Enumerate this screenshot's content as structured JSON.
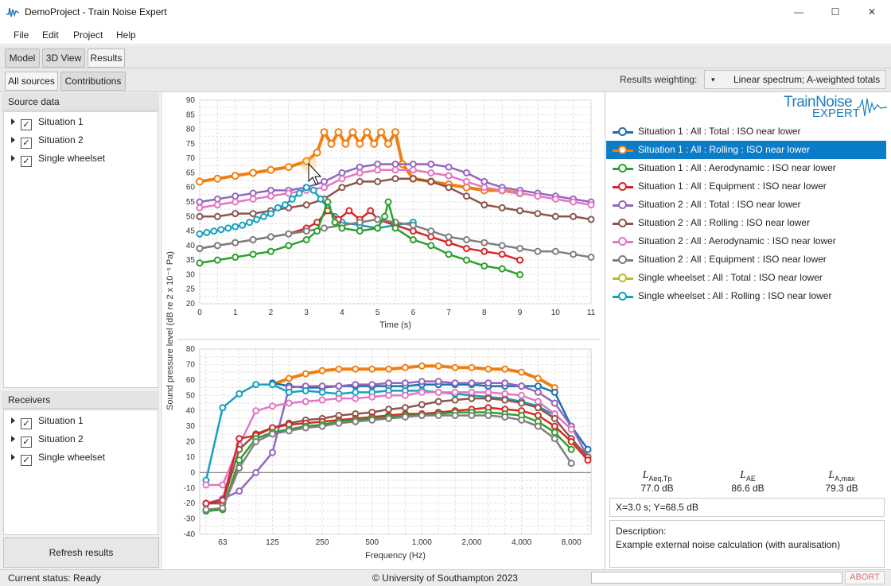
{
  "window": {
    "title": "DemoProject - Train Noise Expert",
    "minimize": "—",
    "maximize": "☐",
    "close": "✕"
  },
  "menu": [
    "File",
    "Edit",
    "Project",
    "Help"
  ],
  "view_tabs": [
    "Model",
    "3D View",
    "Results"
  ],
  "result_tabs": [
    "All sources",
    "Contributions"
  ],
  "weighting": {
    "label": "Results weighting:",
    "value": "Linear spectrum; A-weighted totals",
    "arrow": "▾"
  },
  "source_data": {
    "title": "Source data",
    "items": [
      "Situation 1",
      "Situation 2",
      "Single wheelset"
    ]
  },
  "receivers": {
    "title": "Receivers",
    "items": [
      "Situation 1",
      "Situation 2",
      "Single wheelset"
    ]
  },
  "refresh_label": "Refresh results",
  "status": {
    "text": "Current status: Ready",
    "copyright": "© University of Southampton 2023",
    "abort": "ABORT"
  },
  "logo": {
    "line1": "TrainNoise",
    "line2": "EXPERT"
  },
  "legend": [
    {
      "label": "Situation 1 : All : Total : ISO near lower",
      "color": "#1f6fb2"
    },
    {
      "label": "Situation 1 : All : Rolling : ISO near lower",
      "color": "#f07f13",
      "selected": true
    },
    {
      "label": "Situation 1 : All : Aerodynamic : ISO near lower",
      "color": "#2ca02c"
    },
    {
      "label": "Situation 1 : All : Equipment : ISO near lower",
      "color": "#d62728"
    },
    {
      "label": "Situation 2 : All : Total : ISO near lower",
      "color": "#9467bd"
    },
    {
      "label": "Situation 2 : All : Rolling : ISO near lower",
      "color": "#8c564b"
    },
    {
      "label": "Situation 2 : All : Aerodynamic : ISO near lower",
      "color": "#e377c2"
    },
    {
      "label": "Situation 2 : All : Equipment : ISO near lower",
      "color": "#7f7f7f"
    },
    {
      "label": "Single wheelset : All : Total : ISO near lower",
      "color": "#bcbd22"
    },
    {
      "label": "Single wheelset : All : Rolling : ISO near lower",
      "color": "#17a0be"
    }
  ],
  "metrics": [
    {
      "main": "L",
      "sub": "Aeq,Tp",
      "value": "77.0 dB"
    },
    {
      "main": "L",
      "sub": "AE",
      "value": "86.6 dB"
    },
    {
      "main": "L",
      "sub": "A,max",
      "value": "79.3 dB"
    }
  ],
  "coord_readout": "X=3.0 s;  Y=68.5 dB",
  "description": {
    "label": "Description:",
    "text": "Example external noise calculation (with auralisation)"
  },
  "chart_data": [
    {
      "type": "line",
      "xlabel": "Time (s)",
      "ylabel": "Sound pressure level (dB re 2 x 10⁻⁵ Pa)",
      "xlim": [
        0,
        11
      ],
      "ylim": [
        20,
        90
      ],
      "xticks": [
        "0",
        "1",
        "2",
        "3",
        "4",
        "5",
        "6",
        "7",
        "8",
        "9",
        "10",
        "11"
      ],
      "yticks": [
        "20",
        "25",
        "30",
        "35",
        "40",
        "45",
        "50",
        "55",
        "60",
        "65",
        "70",
        "75",
        "80",
        "85",
        "90"
      ],
      "series": [
        {
          "name": "Situation 1 : All : Rolling : ISO near lower",
          "color": "#f07f13",
          "x": [
            0,
            0.5,
            1,
            1.5,
            2,
            2.5,
            3,
            3.3,
            3.5,
            3.7,
            3.9,
            4.1,
            4.3,
            4.5,
            4.7,
            4.9,
            5.1,
            5.3,
            5.5,
            5.7,
            6,
            6.5,
            7,
            7.5,
            8,
            8.5,
            9
          ],
          "y": [
            62,
            63,
            64,
            65,
            66,
            67,
            69,
            72,
            79,
            75,
            79,
            75,
            79,
            75,
            79,
            75,
            79,
            75,
            79,
            68,
            63,
            62,
            61,
            60,
            59,
            59,
            58
          ]
        },
        {
          "name": "Situation 2 : All : Total : ISO near lower",
          "color": "#9467bd",
          "x": [
            0,
            0.5,
            1,
            1.5,
            2,
            2.5,
            3,
            3.5,
            4,
            4.5,
            5,
            5.5,
            6,
            6.5,
            7,
            7.5,
            8,
            8.5,
            9,
            9.5,
            10,
            10.5,
            11
          ],
          "y": [
            55,
            56,
            57,
            58,
            59,
            59,
            60,
            62,
            65,
            67,
            68,
            68,
            68,
            68,
            67,
            65,
            62,
            60,
            59,
            58,
            57,
            56,
            55
          ]
        },
        {
          "name": "Situation 2 : All : Aerodynamic : ISO near lower",
          "color": "#e377c2",
          "x": [
            0,
            0.5,
            1,
            1.5,
            2,
            2.5,
            3,
            3.5,
            4,
            4.5,
            5,
            5.5,
            6,
            6.5,
            7,
            7.5,
            8,
            8.5,
            9,
            9.5,
            10,
            10.5,
            11
          ],
          "y": [
            53,
            54,
            55,
            56,
            57,
            58,
            59,
            60,
            63,
            65,
            66,
            66,
            66,
            65,
            64,
            62,
            60,
            59,
            58,
            57,
            56,
            55,
            54
          ]
        },
        {
          "name": "Situation 2 : All : Rolling : ISO near lower",
          "color": "#8c564b",
          "x": [
            0,
            0.5,
            1,
            1.5,
            2,
            2.5,
            3,
            3.5,
            4,
            4.5,
            5,
            5.5,
            6,
            6.5,
            7,
            7.5,
            8,
            8.5,
            9,
            9.5,
            10,
            10.5,
            11
          ],
          "y": [
            50,
            50,
            51,
            51,
            52,
            53,
            54,
            56,
            60,
            62,
            62,
            63,
            63,
            62,
            60,
            57,
            54,
            53,
            52,
            51,
            50,
            50,
            49
          ]
        },
        {
          "name": "Single wheelset : All : Rolling : ISO near lower",
          "color": "#17a0be",
          "x": [
            0,
            0.2,
            0.4,
            0.6,
            0.8,
            1,
            1.2,
            1.4,
            1.6,
            1.8,
            2,
            2.2,
            2.4,
            2.6,
            2.8,
            3,
            3.2,
            3.4,
            3.6,
            3.8,
            4,
            4.5,
            5,
            5.5,
            6
          ],
          "y": [
            44,
            44.5,
            45,
            45.5,
            46,
            46.5,
            47,
            48,
            49,
            50,
            51,
            53,
            54,
            56,
            58,
            60,
            59,
            56,
            53,
            50,
            48,
            47,
            46,
            47,
            48
          ]
        },
        {
          "name": "Situation 1 : All : Equipment : ISO near lower",
          "color": "#d62728",
          "x": [
            0,
            0.5,
            1,
            1.5,
            2,
            2.5,
            3,
            3.3,
            3.6,
            3.9,
            4.2,
            4.5,
            4.8,
            5,
            5.5,
            6,
            6.5,
            7,
            7.5,
            8,
            8.5,
            9
          ],
          "y": [
            39,
            40,
            41,
            42,
            43,
            44,
            46,
            48,
            52,
            49,
            52,
            49,
            52,
            49,
            47,
            45,
            43,
            41,
            39,
            38,
            37,
            35
          ]
        },
        {
          "name": "Situation 2 : All : Equipment : ISO near lower",
          "color": "#7f7f7f",
          "x": [
            0,
            0.5,
            1,
            1.5,
            2,
            2.5,
            3,
            3.5,
            4,
            4.5,
            5,
            5.5,
            6,
            6.5,
            7,
            7.5,
            8,
            8.5,
            9,
            9.5,
            10,
            10.5,
            11
          ],
          "y": [
            39,
            40,
            41,
            42,
            43,
            44,
            45,
            46,
            47,
            48,
            49,
            48,
            47,
            45,
            43,
            42,
            41,
            40,
            39,
            38,
            38,
            37,
            36
          ]
        },
        {
          "name": "Situation 1 : All : Aerodynamic : ISO near lower",
          "color": "#2ca02c",
          "x": [
            0,
            0.5,
            1,
            1.5,
            2,
            2.5,
            3,
            3.3,
            3.6,
            3.8,
            4,
            4.5,
            5,
            5.2,
            5.3,
            5.5,
            6,
            6.5,
            7,
            7.5,
            8,
            8.5,
            9
          ],
          "y": [
            34,
            35,
            36,
            37,
            38,
            40,
            42,
            45,
            55,
            48,
            46,
            45,
            46,
            50,
            55,
            46,
            42,
            40,
            37,
            35,
            33,
            32,
            30
          ]
        }
      ]
    },
    {
      "type": "line",
      "xlabel": "Frequency (Hz)",
      "ylabel": "Sound pressure level (dB re 2 x 10⁻⁵ Pa)",
      "ylim": [
        -40,
        80
      ],
      "categories": [
        "50",
        "63",
        "80",
        "100",
        "125",
        "160",
        "200",
        "250",
        "315",
        "400",
        "500",
        "630",
        "800",
        "1,000",
        "1,250",
        "1,600",
        "2,000",
        "2,500",
        "3,150",
        "4,000",
        "5,000",
        "6,300",
        "8,000",
        "10,000"
      ],
      "xticks": [
        "63",
        "125",
        "250",
        "500",
        "1,000",
        "2,000",
        "4,000",
        "8,000"
      ],
      "yticks": [
        "-40",
        "-30",
        "-20",
        "-10",
        "0",
        "10",
        "20",
        "30",
        "40",
        "50",
        "60",
        "70",
        "80"
      ],
      "series": [
        {
          "name": "Situation 1 : All : Rolling : ISO near lower",
          "color": "#f07f13",
          "values": [
            null,
            null,
            null,
            null,
            57,
            61,
            64,
            66,
            67,
            67,
            67,
            67,
            68,
            69,
            69,
            68,
            68,
            67,
            67,
            65,
            61,
            55,
            null,
            null
          ]
        },
        {
          "name": "Situation 1 : All : Total : ISO near lower",
          "color": "#1f6fb2",
          "values": [
            null,
            null,
            null,
            null,
            58,
            56,
            55,
            55,
            56,
            56,
            56,
            56,
            56,
            57,
            57,
            57,
            57,
            56,
            56,
            56,
            56,
            52,
            30,
            15
          ]
        },
        {
          "name": "Situation 2 : All : Total : ISO near lower",
          "color": "#9467bd",
          "values": [
            -20,
            -17,
            -12,
            0,
            13,
            55,
            56,
            56,
            56,
            57,
            57,
            58,
            58,
            59,
            59,
            58,
            58,
            58,
            58,
            56,
            52,
            45,
            30,
            10
          ]
        },
        {
          "name": "Single wheelset : All : Rolling : ISO near lower",
          "color": "#17a0be",
          "values": [
            -5,
            42,
            51,
            57,
            57,
            52,
            53,
            52,
            51,
            52,
            52,
            53,
            53,
            53,
            52,
            51,
            50,
            49,
            48,
            46,
            43,
            37,
            null,
            null
          ]
        },
        {
          "name": "Situation 2 : All : Aerodynamic : ISO near lower",
          "color": "#e377c2",
          "values": [
            -8,
            -8,
            18,
            40,
            43,
            45,
            46,
            47,
            48,
            48,
            49,
            50,
            50,
            52,
            52,
            52,
            52,
            52,
            51,
            50,
            46,
            38,
            28,
            null
          ]
        },
        {
          "name": "Situation 2 : All : Rolling : ISO near lower",
          "color": "#8c564b",
          "values": [
            -20,
            -20,
            15,
            25,
            29,
            32,
            34,
            35,
            37,
            38,
            39,
            41,
            42,
            44,
            46,
            47,
            48,
            48,
            47,
            45,
            42,
            35,
            22,
            10
          ]
        },
        {
          "name": "Situation 1 : All : Equipment : ISO near lower",
          "color": "#d62728",
          "values": [
            -20,
            -18,
            22,
            24,
            29,
            31,
            32,
            33,
            34,
            35,
            36,
            37,
            38,
            38,
            39,
            40,
            41,
            42,
            41,
            40,
            37,
            30,
            20,
            8
          ]
        },
        {
          "name": "Situation 1 : All : Aerodynamic : ISO near lower",
          "color": "#2ca02c",
          "values": [
            -25,
            -24,
            8,
            22,
            26,
            28,
            30,
            31,
            33,
            34,
            35,
            36,
            37,
            37,
            38,
            39,
            39,
            39,
            38,
            37,
            33,
            26,
            15,
            null
          ]
        },
        {
          "name": "Situation 2 : All : Equipment : ISO near lower",
          "color": "#7f7f7f",
          "values": [
            -24,
            -23,
            3,
            20,
            25,
            27,
            29,
            30,
            32,
            33,
            34,
            35,
            36,
            37,
            37,
            37,
            37,
            37,
            36,
            34,
            30,
            22,
            6,
            null
          ]
        }
      ]
    }
  ]
}
